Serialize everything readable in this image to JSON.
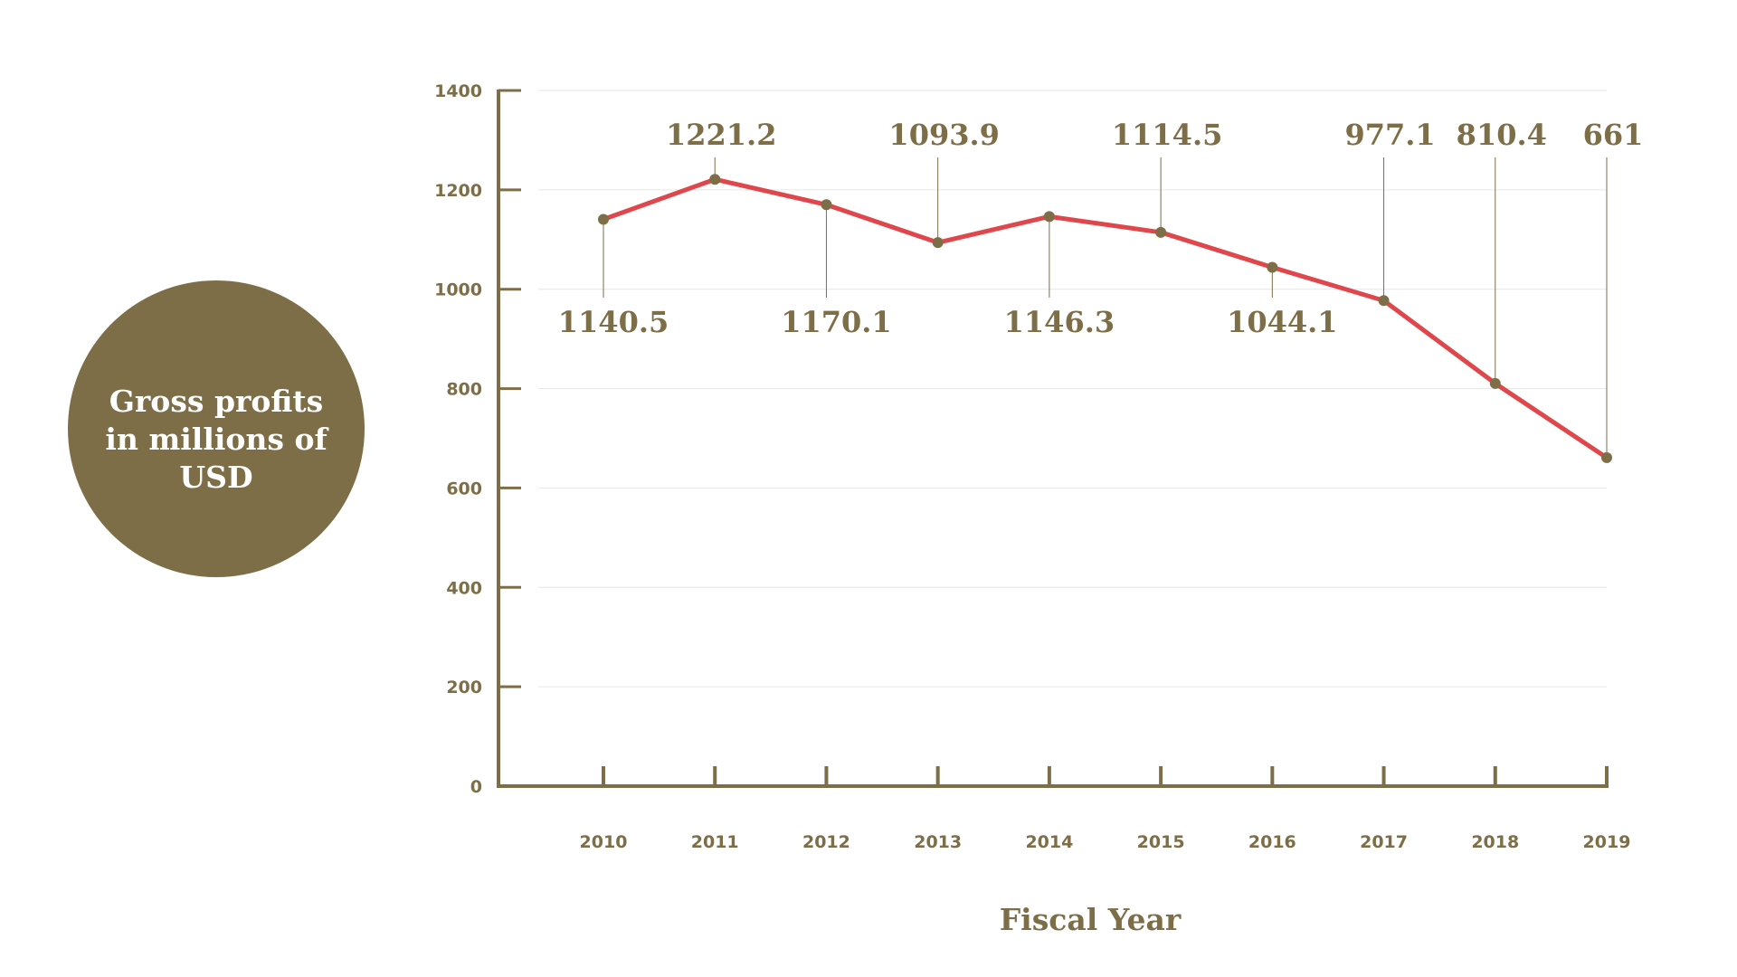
{
  "chart_data": {
    "type": "line",
    "title": "Gross profits in millions of USD",
    "title_lines": [
      "Gross profits",
      "in millions of",
      "USD"
    ],
    "xlabel": "Fiscal Year",
    "ylabel": "",
    "categories": [
      "2010",
      "2011",
      "2012",
      "2013",
      "2014",
      "2015",
      "2016",
      "2017",
      "2018",
      "2019"
    ],
    "series": [
      {
        "values": [
          1140.5,
          1221.2,
          1170.1,
          1093.9,
          1146.3,
          1114.5,
          1044.1,
          977.1,
          810.4,
          661
        ]
      }
    ],
    "data_labels": [
      "1140.5",
      "1221.2",
      "1170.1",
      "1093.9",
      "1146.3",
      "1114.5",
      "1044.1",
      "977.1",
      "810.4",
      "661"
    ],
    "label_positions": [
      "below",
      "above",
      "below",
      "above",
      "below",
      "above",
      "below",
      "above",
      "above",
      "above"
    ],
    "ylim": [
      0,
      1400
    ],
    "yticks": [
      0,
      200,
      400,
      600,
      800,
      1000,
      1200,
      1400
    ],
    "grid": true,
    "legend": "none",
    "colors": {
      "line": "#e0474c",
      "accent": "#7d6e48",
      "grid": "#e6e6e6",
      "badge_text": "#ffffff"
    }
  }
}
